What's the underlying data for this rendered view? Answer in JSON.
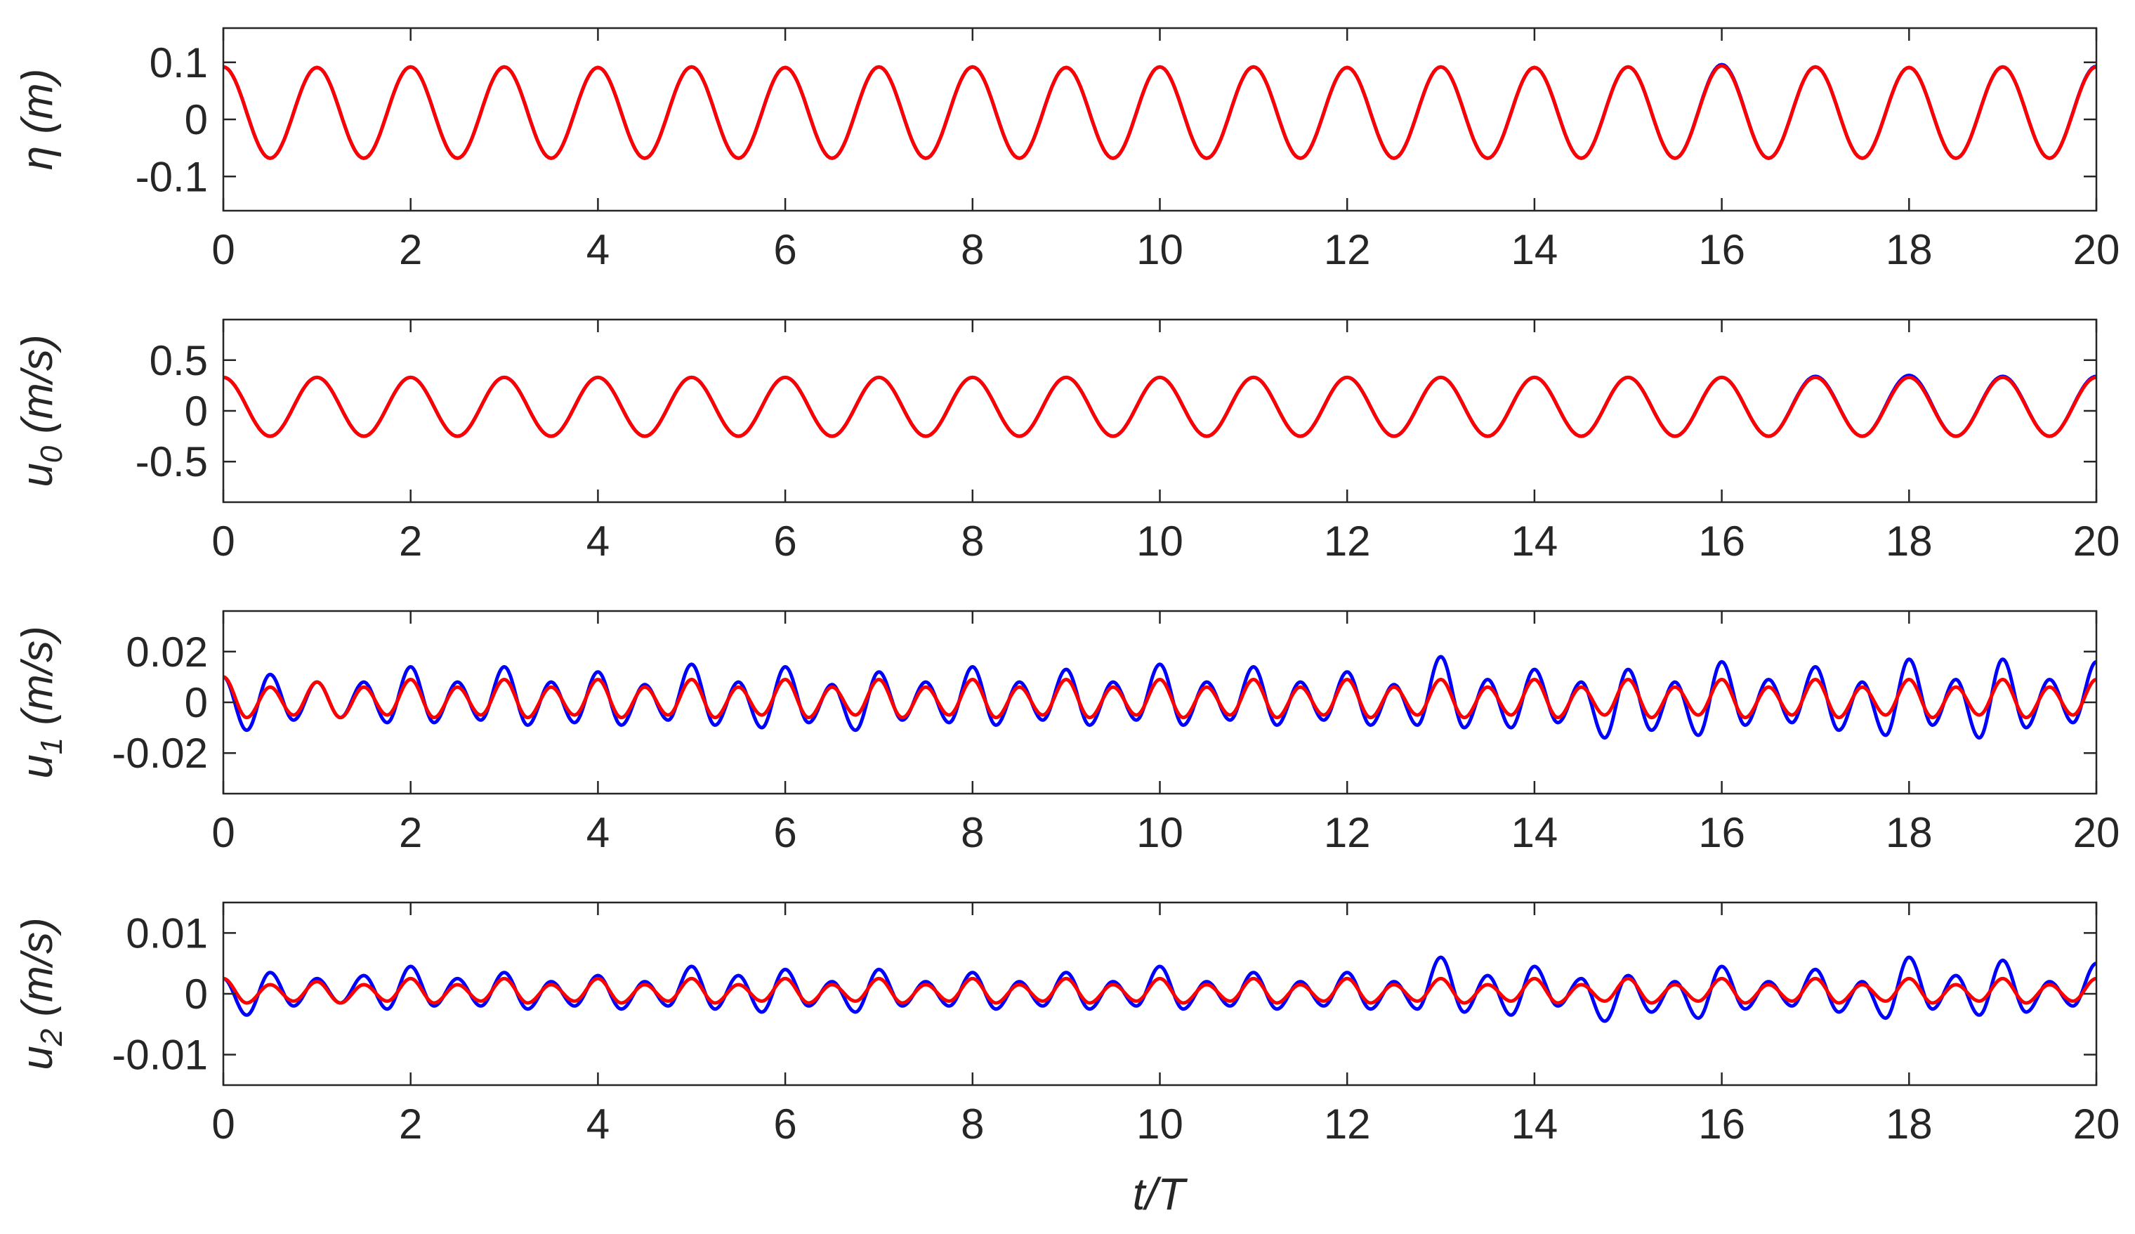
{
  "figure": {
    "xlabel": "t/T"
  },
  "colors": {
    "series_measured": "#0000ff",
    "series_model": "#ff0000",
    "axis": "#262626"
  },
  "chart_data": [
    {
      "type": "line",
      "ylabel_symbol": "η",
      "ylabel_unit": "(m)",
      "xlabel": "",
      "xlim": [
        0,
        20
      ],
      "ylim": [
        -0.16,
        0.16
      ],
      "xticks": [
        0,
        2,
        4,
        6,
        8,
        10,
        12,
        14,
        16,
        18,
        20
      ],
      "xtick_labels": [
        "0",
        "2",
        "4",
        "6",
        "8",
        "10",
        "12",
        "14",
        "16",
        "18",
        "20"
      ],
      "yticks": [
        0.1,
        0,
        -0.1
      ],
      "ytick_labels": [
        "0.1",
        "0",
        "-0.1"
      ],
      "wave": {
        "period": 1,
        "crest": 0.092,
        "trough": -0.068,
        "phase_at_zero": "crest"
      },
      "series": [
        {
          "color": "#0000ff",
          "crest_peaks": [
            0.092,
            0.091,
            0.092,
            0.092,
            0.091,
            0.092,
            0.091,
            0.092,
            0.092,
            0.091,
            0.092,
            0.092,
            0.091,
            0.092,
            0.091,
            0.092,
            0.096,
            0.092,
            0.091,
            0.092,
            0.093
          ]
        },
        {
          "color": "#ff0000",
          "crest_peaks": [
            0.092,
            0.091,
            0.092,
            0.092,
            0.091,
            0.092,
            0.091,
            0.092,
            0.092,
            0.091,
            0.092,
            0.092,
            0.091,
            0.092,
            0.091,
            0.092,
            0.094,
            0.092,
            0.091,
            0.092,
            0.092
          ]
        }
      ]
    },
    {
      "type": "line",
      "ylabel_symbol": "u",
      "ylabel_sub": "0",
      "ylabel_unit": "(m/s)",
      "xlabel": "",
      "xlim": [
        0,
        20
      ],
      "ylim": [
        -0.9,
        0.9
      ],
      "xticks": [
        0,
        2,
        4,
        6,
        8,
        10,
        12,
        14,
        16,
        18,
        20
      ],
      "xtick_labels": [
        "0",
        "2",
        "4",
        "6",
        "8",
        "10",
        "12",
        "14",
        "16",
        "18",
        "20"
      ],
      "yticks": [
        0.5,
        0,
        -0.5
      ],
      "ytick_labels": [
        "0.5",
        "0",
        "-0.5"
      ],
      "wave": {
        "period": 1,
        "crest": 0.33,
        "trough": -0.25,
        "phase_at_zero": "crest"
      },
      "series": [
        {
          "color": "#0000ff",
          "crest_peaks": [
            0.33,
            0.33,
            0.33,
            0.33,
            0.33,
            0.33,
            0.33,
            0.33,
            0.33,
            0.33,
            0.33,
            0.33,
            0.33,
            0.33,
            0.33,
            0.33,
            0.33,
            0.34,
            0.35,
            0.34,
            0.34
          ]
        },
        {
          "color": "#ff0000",
          "crest_peaks": [
            0.33,
            0.33,
            0.33,
            0.33,
            0.33,
            0.33,
            0.33,
            0.33,
            0.33,
            0.33,
            0.33,
            0.33,
            0.33,
            0.33,
            0.33,
            0.33,
            0.33,
            0.33,
            0.33,
            0.33,
            0.33
          ]
        }
      ]
    },
    {
      "type": "line",
      "ylabel_symbol": "u",
      "ylabel_sub": "1",
      "ylabel_unit": "(m/s)",
      "xlabel": "",
      "xlim": [
        0,
        20
      ],
      "ylim": [
        -0.036,
        0.036
      ],
      "xticks": [
        0,
        2,
        4,
        6,
        8,
        10,
        12,
        14,
        16,
        18,
        20
      ],
      "xtick_labels": [
        "0",
        "2",
        "4",
        "6",
        "8",
        "10",
        "12",
        "14",
        "16",
        "18",
        "20"
      ],
      "yticks": [
        0.02,
        0,
        -0.02
      ],
      "ytick_labels": [
        "0.02",
        "0",
        "-0.02"
      ],
      "wave": {
        "period": 0.5,
        "phase_at_zero": "crest"
      },
      "series": [
        {
          "color": "#0000ff",
          "half_period_amplitude": [
            0.01,
            0.011,
            0.008,
            0.008,
            0.014,
            0.008,
            0.014,
            0.008,
            0.012,
            0.007,
            0.015,
            0.008,
            0.014,
            0.007,
            0.012,
            0.008,
            0.014,
            0.008,
            0.013,
            0.008,
            0.015,
            0.008,
            0.014,
            0.008,
            0.012,
            0.007,
            0.018,
            0.009,
            0.013,
            0.008,
            0.013,
            0.008,
            0.016,
            0.009,
            0.014,
            0.008,
            0.017,
            0.009,
            0.017,
            0.009,
            0.016
          ],
          "half_period_trough": [
            -0.011,
            -0.007,
            -0.006,
            -0.008,
            -0.008,
            -0.007,
            -0.009,
            -0.008,
            -0.009,
            -0.007,
            -0.009,
            -0.01,
            -0.008,
            -0.011,
            -0.007,
            -0.008,
            -0.009,
            -0.007,
            -0.009,
            -0.007,
            -0.009,
            -0.007,
            -0.009,
            -0.007,
            -0.009,
            -0.009,
            -0.01,
            -0.01,
            -0.008,
            -0.014,
            -0.011,
            -0.013,
            -0.009,
            -0.008,
            -0.011,
            -0.013,
            -0.009,
            -0.014,
            -0.01,
            -0.008
          ]
        },
        {
          "color": "#ff0000",
          "half_period_amplitude": [
            0.01,
            0.006,
            0.008,
            0.006,
            0.009,
            0.006,
            0.009,
            0.006,
            0.009,
            0.006,
            0.009,
            0.006,
            0.009,
            0.006,
            0.009,
            0.006,
            0.009,
            0.006,
            0.009,
            0.006,
            0.009,
            0.006,
            0.009,
            0.006,
            0.009,
            0.006,
            0.009,
            0.006,
            0.009,
            0.006,
            0.009,
            0.006,
            0.009,
            0.006,
            0.009,
            0.006,
            0.009,
            0.006,
            0.009,
            0.006,
            0.009
          ],
          "half_period_trough": [
            -0.006,
            -0.005,
            -0.006,
            -0.005,
            -0.006,
            -0.005,
            -0.006,
            -0.005,
            -0.006,
            -0.005,
            -0.006,
            -0.005,
            -0.006,
            -0.005,
            -0.006,
            -0.005,
            -0.006,
            -0.005,
            -0.006,
            -0.005,
            -0.006,
            -0.005,
            -0.006,
            -0.005,
            -0.006,
            -0.005,
            -0.006,
            -0.005,
            -0.006,
            -0.005,
            -0.006,
            -0.005,
            -0.006,
            -0.005,
            -0.006,
            -0.005,
            -0.006,
            -0.005,
            -0.006,
            -0.005
          ]
        }
      ]
    },
    {
      "type": "line",
      "ylabel_symbol": "u",
      "ylabel_sub": "2",
      "ylabel_unit": "(m/s)",
      "xlabel": "t/T",
      "xlim": [
        0,
        20
      ],
      "ylim": [
        -0.015,
        0.015
      ],
      "xticks": [
        0,
        2,
        4,
        6,
        8,
        10,
        12,
        14,
        16,
        18,
        20
      ],
      "xtick_labels": [
        "0",
        "2",
        "4",
        "6",
        "8",
        "10",
        "12",
        "14",
        "16",
        "18",
        "20"
      ],
      "yticks": [
        0.01,
        0,
        -0.01
      ],
      "ytick_labels": [
        "0.01",
        "0",
        "-0.01"
      ],
      "wave": {
        "period": 0.5,
        "phase_at_zero": "crest"
      },
      "series": [
        {
          "color": "#0000ff",
          "half_period_amplitude": [
            0.0025,
            0.0035,
            0.0025,
            0.003,
            0.0045,
            0.0025,
            0.0035,
            0.002,
            0.003,
            0.002,
            0.0045,
            0.003,
            0.004,
            0.002,
            0.004,
            0.002,
            0.0035,
            0.002,
            0.0035,
            0.002,
            0.0045,
            0.002,
            0.0035,
            0.002,
            0.0035,
            0.002,
            0.006,
            0.003,
            0.0045,
            0.0025,
            0.003,
            0.002,
            0.0045,
            0.002,
            0.004,
            0.002,
            0.006,
            0.003,
            0.0055,
            0.002,
            0.005
          ],
          "half_period_trough": [
            -0.0035,
            -0.002,
            -0.0015,
            -0.0025,
            -0.002,
            -0.002,
            -0.0025,
            -0.002,
            -0.0025,
            -0.002,
            -0.0025,
            -0.003,
            -0.002,
            -0.003,
            -0.002,
            -0.002,
            -0.0025,
            -0.002,
            -0.0025,
            -0.002,
            -0.0025,
            -0.002,
            -0.0025,
            -0.002,
            -0.0025,
            -0.0025,
            -0.003,
            -0.0035,
            -0.002,
            -0.0045,
            -0.003,
            -0.004,
            -0.0025,
            -0.002,
            -0.003,
            -0.004,
            -0.0025,
            -0.0035,
            -0.003,
            -0.002
          ]
        },
        {
          "color": "#ff0000",
          "half_period_amplitude": [
            0.0025,
            0.0015,
            0.002,
            0.0015,
            0.0025,
            0.0015,
            0.0025,
            0.0015,
            0.0025,
            0.0015,
            0.0025,
            0.0015,
            0.0025,
            0.0015,
            0.0025,
            0.0015,
            0.0025,
            0.0015,
            0.0025,
            0.0015,
            0.0025,
            0.0015,
            0.0025,
            0.0015,
            0.0025,
            0.0015,
            0.0025,
            0.0015,
            0.0025,
            0.0015,
            0.0025,
            0.0015,
            0.0025,
            0.0015,
            0.0025,
            0.0015,
            0.0025,
            0.0015,
            0.0025,
            0.0015,
            0.0025
          ],
          "half_period_trough": [
            -0.0015,
            -0.0012,
            -0.0015,
            -0.0012,
            -0.0015,
            -0.0012,
            -0.0015,
            -0.0012,
            -0.0015,
            -0.0012,
            -0.0015,
            -0.0012,
            -0.0015,
            -0.0012,
            -0.0015,
            -0.0012,
            -0.0015,
            -0.0012,
            -0.0015,
            -0.0012,
            -0.0015,
            -0.0012,
            -0.0015,
            -0.0012,
            -0.0015,
            -0.0012,
            -0.0015,
            -0.0012,
            -0.0015,
            -0.0012,
            -0.0015,
            -0.0012,
            -0.0015,
            -0.0012,
            -0.0015,
            -0.0012,
            -0.0015,
            -0.0012,
            -0.0015,
            -0.0012
          ]
        }
      ]
    }
  ]
}
